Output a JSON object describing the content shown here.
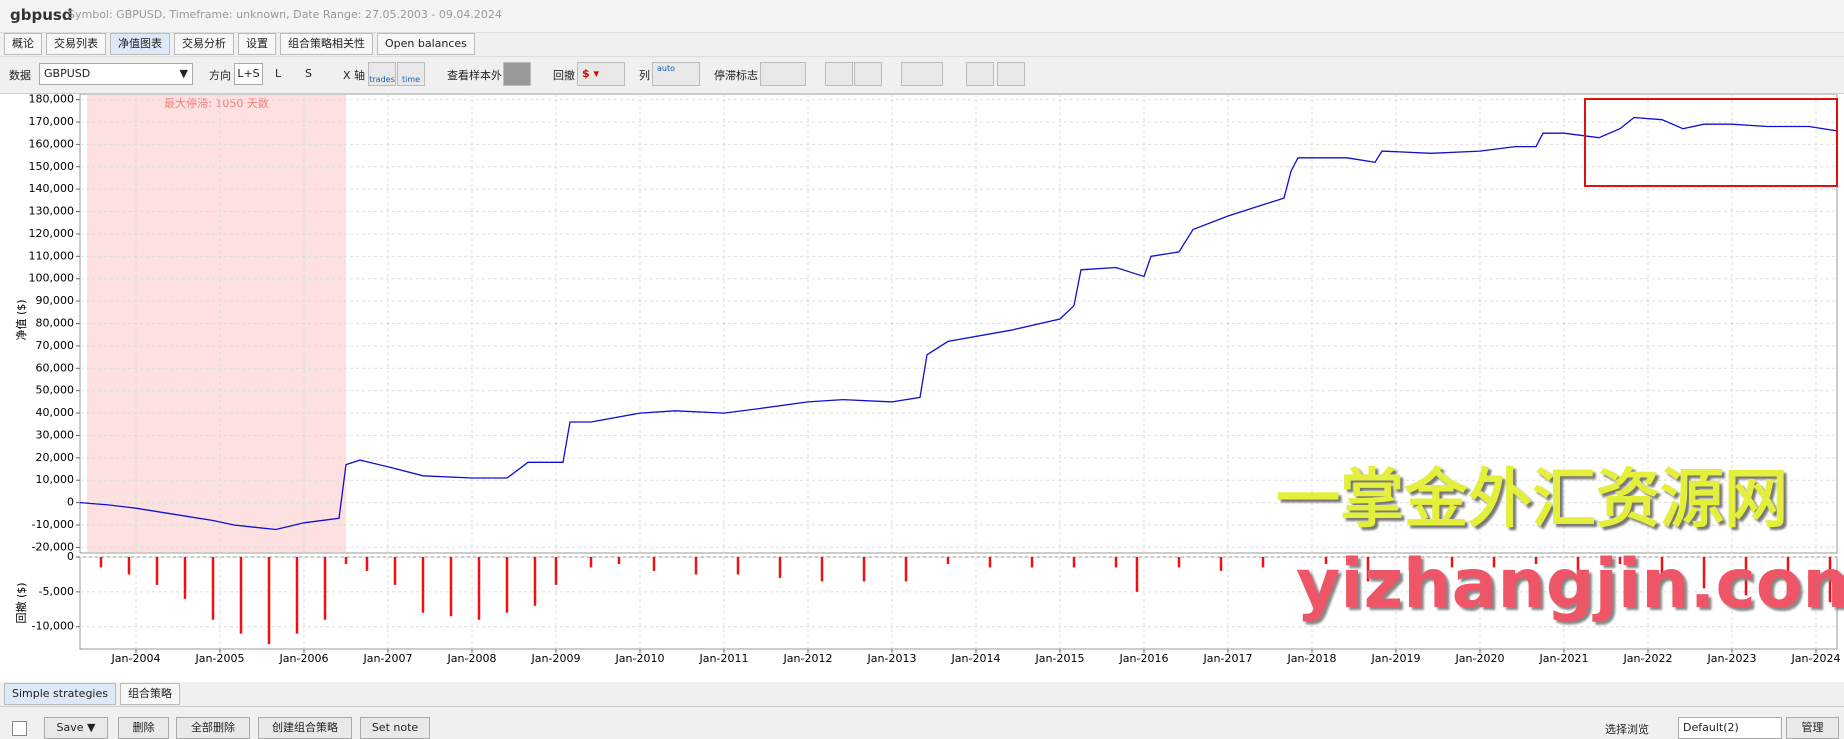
{
  "header": {
    "title": "gbpusd",
    "subtitle": "Symbol: GBPUSD, Timeframe: unknown, Date Range: 27.05.2003 - 09.04.2024"
  },
  "tabs": [
    "概论",
    "交易列表",
    "净值图表",
    "交易分析",
    "设置",
    "组合策略相关性",
    "Open balances"
  ],
  "toolbar": {
    "data_label": "数据",
    "data_value": "GBPUSD",
    "direction_label": "方向",
    "directions": [
      "L+S",
      "L",
      "S"
    ],
    "x_axis_label": "X 轴",
    "x_modes": [
      "trades",
      "time"
    ],
    "out_of_sample": "查看样本外",
    "drawdown_label": "回撤",
    "columns_label": "列",
    "columns_value": "auto",
    "stagnation_label": "停滞标志"
  },
  "chart_data": [
    {
      "type": "line",
      "y_label": "净值 ($)",
      "annotation": "最大停滞: 1050 天数",
      "shade": [
        "2003-06",
        "2006-07"
      ],
      "color": "#1010d0",
      "grid": true,
      "xlim": [
        "2003-05",
        "2024-04"
      ],
      "ylim": [
        -22500,
        182500
      ],
      "yticks": [
        {
          "value": -20000,
          "label": "-20,000"
        },
        {
          "value": -10000,
          "label": "-10,000"
        },
        0,
        {
          "value": 10000,
          "label": "10,000"
        },
        {
          "value": 20000,
          "label": "20,000"
        },
        {
          "value": 30000,
          "label": "30,000"
        },
        {
          "value": 40000,
          "label": "40,000"
        },
        {
          "value": 50000,
          "label": "50,000"
        },
        {
          "value": 60000,
          "label": "60,000"
        },
        {
          "value": 70000,
          "label": "70,000"
        },
        {
          "value": 80000,
          "label": "80,000"
        },
        {
          "value": 90000,
          "label": "90,000"
        },
        {
          "value": 100000,
          "label": "100,000"
        },
        {
          "value": 110000,
          "label": "110,000"
        },
        {
          "value": 120000,
          "label": "120,000"
        },
        {
          "value": 130000,
          "label": "130,000"
        },
        {
          "value": 140000,
          "label": "140,000"
        },
        {
          "value": 150000,
          "label": "150,000"
        },
        {
          "value": 160000,
          "label": "160,000"
        },
        {
          "value": 170000,
          "label": "170,000"
        },
        {
          "value": 180000,
          "label": "180,000"
        }
      ],
      "x": [
        "2003-05",
        "2003-09",
        "2004-01",
        "2004-06",
        "2004-12",
        "2005-03",
        "2005-06",
        "2005-09",
        "2006-01",
        "2006-06",
        "2006-07",
        "2006-09",
        "2007-01",
        "2007-06",
        "2008-01",
        "2008-06",
        "2008-09",
        "2009-02",
        "2009-03",
        "2009-06",
        "2010-01",
        "2010-06",
        "2011-01",
        "2011-06",
        "2012-01",
        "2012-06",
        "2013-01",
        "2013-05",
        "2013-06",
        "2013-09",
        "2014-06",
        "2015-01",
        "2015-03",
        "2015-04",
        "2015-09",
        "2016-01",
        "2016-02",
        "2016-06",
        "2016-08",
        "2017-01",
        "2017-06",
        "2017-09",
        "2017-10",
        "2017-11",
        "2018-06",
        "2018-10",
        "2018-11",
        "2019-06",
        "2020-01",
        "2020-06",
        "2020-09",
        "2020-10",
        "2021-01",
        "2021-06",
        "2021-09",
        "2021-11",
        "2022-03",
        "2022-06",
        "2022-09",
        "2023-01",
        "2023-06",
        "2023-12",
        "2024-04"
      ],
      "values": [
        0,
        -1000,
        -2500,
        -5000,
        -8000,
        -10000,
        -11000,
        -12000,
        -9000,
        -7000,
        17000,
        19000,
        16000,
        12000,
        11000,
        11000,
        18000,
        18000,
        36000,
        36000,
        40000,
        41000,
        40000,
        42000,
        45000,
        46000,
        45000,
        47000,
        66000,
        72000,
        77000,
        82000,
        88000,
        104000,
        105000,
        101000,
        110000,
        112000,
        122000,
        128000,
        133000,
        136000,
        148000,
        154000,
        154000,
        152000,
        157000,
        156000,
        157000,
        159000,
        159000,
        165000,
        165000,
        163000,
        167000,
        172000,
        171000,
        167000,
        169000,
        169000,
        168000,
        168000,
        166000
      ]
    },
    {
      "type": "bar",
      "y_label": "回撤 ($)",
      "color": "#ee1111",
      "grid": true,
      "xlim": [
        "2003-05",
        "2024-04"
      ],
      "ylim": [
        -13200,
        0
      ],
      "yticks": [
        {
          "value": -10000,
          "label": "-10,000"
        },
        {
          "value": -5000,
          "label": "-5,000"
        },
        0
      ],
      "xticks": [
        {
          "value": "2004-01",
          "label": "Jan-2004"
        },
        {
          "value": "2005-01",
          "label": "Jan-2005"
        },
        {
          "value": "2006-01",
          "label": "Jan-2006"
        },
        {
          "value": "2007-01",
          "label": "Jan-2007"
        },
        {
          "value": "2008-01",
          "label": "Jan-2008"
        },
        {
          "value": "2009-01",
          "label": "Jan-2009"
        },
        {
          "value": "2010-01",
          "label": "Jan-2010"
        },
        {
          "value": "2011-01",
          "label": "Jan-2011"
        },
        {
          "value": "2012-01",
          "label": "Jan-2012"
        },
        {
          "value": "2013-01",
          "label": "Jan-2013"
        },
        {
          "value": "2014-01",
          "label": "Jan-2014"
        },
        {
          "value": "2015-01",
          "label": "Jan-2015"
        },
        {
          "value": "2016-01",
          "label": "Jan-2016"
        },
        {
          "value": "2017-01",
          "label": "Jan-2017"
        },
        {
          "value": "2018-01",
          "label": "Jan-2018"
        },
        {
          "value": "2019-01",
          "label": "Jan-2019"
        },
        {
          "value": "2020-01",
          "label": "Jan-2020"
        },
        {
          "value": "2021-01",
          "label": "Jan-2021"
        },
        {
          "value": "2022-01",
          "label": "Jan-2022"
        },
        {
          "value": "2023-01",
          "label": "Jan-2023"
        },
        {
          "value": "2024-01",
          "label": "Jan-2024"
        }
      ],
      "x": [
        "2003-08",
        "2003-12",
        "2004-04",
        "2004-08",
        "2004-12",
        "2005-04",
        "2005-08",
        "2005-12",
        "2006-04",
        "2006-07",
        "2006-10",
        "2007-02",
        "2007-06",
        "2007-10",
        "2008-02",
        "2008-06",
        "2008-10",
        "2009-01",
        "2009-06",
        "2009-10",
        "2010-03",
        "2010-09",
        "2011-03",
        "2011-09",
        "2012-03",
        "2012-09",
        "2013-03",
        "2013-09",
        "2014-03",
        "2014-09",
        "2015-03",
        "2015-09",
        "2015-12",
        "2016-06",
        "2016-12",
        "2017-06",
        "2018-03",
        "2018-09",
        "2019-03",
        "2019-09",
        "2020-03",
        "2020-09",
        "2021-03",
        "2021-09",
        "2022-03",
        "2022-09",
        "2023-03",
        "2023-09",
        "2024-03"
      ],
      "values": [
        -1500,
        -2500,
        -4000,
        -6000,
        -9000,
        -11000,
        -12500,
        -11000,
        -9000,
        -1000,
        -2000,
        -4000,
        -8000,
        -8500,
        -9000,
        -8000,
        -7000,
        -4000,
        -1500,
        -1000,
        -2000,
        -2500,
        -2500,
        -3000,
        -3500,
        -3500,
        -3500,
        -1000,
        -1500,
        -1500,
        -1500,
        -1500,
        -5000,
        -1500,
        -2000,
        -1500,
        -1000,
        -3500,
        -2000,
        -1500,
        -1500,
        -1000,
        -2500,
        -1000,
        -3500,
        -4500,
        -5500,
        -6000,
        -6500
      ]
    }
  ],
  "watermark": [
    "一掌金外汇资源网",
    "yizhangjin.com"
  ],
  "bottom_tabs": [
    "Simple strategies",
    "组合策略"
  ],
  "buttons": [
    "Save ▼",
    "删除",
    "全部删除",
    "创建组合策略",
    "Set note"
  ],
  "view": {
    "label": "选择浏览",
    "value": "Default(2)",
    "manage": "管理"
  }
}
